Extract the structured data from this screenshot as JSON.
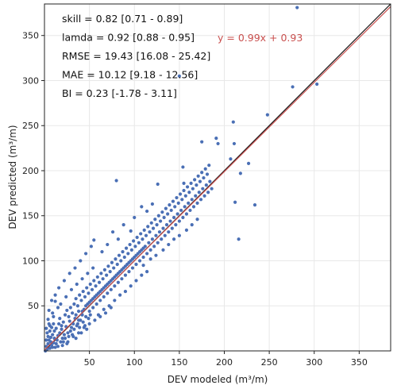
{
  "chart_data": {
    "type": "scatter",
    "xlabel": "DEV modeled (m³/m)",
    "ylabel": "DEV predicted (m³/m)",
    "xlim": [
      0,
      385
    ],
    "ylim": [
      0,
      385
    ],
    "xticks": [
      50,
      100,
      150,
      200,
      250,
      300,
      350
    ],
    "yticks": [
      50,
      100,
      150,
      200,
      250,
      300,
      350
    ],
    "grid": true,
    "colors": {
      "points": "#4a6fb5",
      "identity_line": "#111111",
      "fit_line": "#c9504f",
      "fit_text": "#c9504f",
      "grid": "#e8e8e8"
    },
    "stats": [
      "skill = 0.82 [0.71 - 0.89]",
      "lamda = 0.92 [0.88 - 0.95]",
      "RMSE = 19.43 [16.08 - 25.42]",
      "MAE = 10.12 [9.18 - 12.56]",
      "BI  = 0.23 [-1.78 - 3.11]"
    ],
    "fit": {
      "label": "y = 0.99x + 0.93",
      "slope": 0.99,
      "intercept": 0.93
    },
    "points": [
      [
        1,
        0
      ],
      [
        3,
        2
      ],
      [
        2,
        5
      ],
      [
        4,
        8
      ],
      [
        6,
        3
      ],
      [
        8,
        6
      ],
      [
        5,
        12
      ],
      [
        10,
        9
      ],
      [
        7,
        15
      ],
      [
        12,
        4
      ],
      [
        3,
        20
      ],
      [
        9,
        18
      ],
      [
        14,
        12
      ],
      [
        11,
        22
      ],
      [
        6,
        28
      ],
      [
        15,
        17
      ],
      [
        13,
        25
      ],
      [
        18,
        10
      ],
      [
        16,
        30
      ],
      [
        20,
        14
      ],
      [
        4,
        35
      ],
      [
        19,
        24
      ],
      [
        22,
        18
      ],
      [
        17,
        36
      ],
      [
        24,
        27
      ],
      [
        21,
        32
      ],
      [
        9,
        42
      ],
      [
        26,
        20
      ],
      [
        23,
        40
      ],
      [
        28,
        33
      ],
      [
        25,
        45
      ],
      [
        30,
        26
      ],
      [
        27,
        38
      ],
      [
        12,
        55
      ],
      [
        32,
        30
      ],
      [
        29,
        48
      ],
      [
        34,
        36
      ],
      [
        31,
        42
      ],
      [
        36,
        28
      ],
      [
        33,
        52
      ],
      [
        38,
        44
      ],
      [
        35,
        58
      ],
      [
        40,
        34
      ],
      [
        37,
        50
      ],
      [
        42,
        40
      ],
      [
        39,
        62
      ],
      [
        44,
        46
      ],
      [
        41,
        56
      ],
      [
        46,
        38
      ],
      [
        43,
        66
      ],
      [
        48,
        52
      ],
      [
        45,
        60
      ],
      [
        50,
        44
      ],
      [
        47,
        70
      ],
      [
        52,
        56
      ],
      [
        49,
        64
      ],
      [
        54,
        48
      ],
      [
        51,
        74
      ],
      [
        56,
        60
      ],
      [
        53,
        68
      ],
      [
        58,
        52
      ],
      [
        55,
        78
      ],
      [
        60,
        64
      ],
      [
        57,
        72
      ],
      [
        62,
        56
      ],
      [
        59,
        82
      ],
      [
        64,
        68
      ],
      [
        61,
        76
      ],
      [
        66,
        60
      ],
      [
        63,
        86
      ],
      [
        68,
        72
      ],
      [
        65,
        80
      ],
      [
        70,
        64
      ],
      [
        67,
        90
      ],
      [
        72,
        76
      ],
      [
        69,
        84
      ],
      [
        74,
        68
      ],
      [
        71,
        94
      ],
      [
        76,
        80
      ],
      [
        73,
        88
      ],
      [
        78,
        72
      ],
      [
        75,
        98
      ],
      [
        80,
        84
      ],
      [
        77,
        92
      ],
      [
        82,
        76
      ],
      [
        79,
        102
      ],
      [
        84,
        88
      ],
      [
        81,
        96
      ],
      [
        86,
        80
      ],
      [
        83,
        106
      ],
      [
        88,
        92
      ],
      [
        85,
        100
      ],
      [
        90,
        84
      ],
      [
        87,
        110
      ],
      [
        92,
        96
      ],
      [
        89,
        104
      ],
      [
        94,
        88
      ],
      [
        91,
        114
      ],
      [
        96,
        100
      ],
      [
        93,
        108
      ],
      [
        98,
        92
      ],
      [
        95,
        118
      ],
      [
        100,
        104
      ],
      [
        97,
        112
      ],
      [
        102,
        96
      ],
      [
        99,
        122
      ],
      [
        104,
        108
      ],
      [
        101,
        116
      ],
      [
        106,
        100
      ],
      [
        103,
        126
      ],
      [
        108,
        112
      ],
      [
        105,
        120
      ],
      [
        110,
        104
      ],
      [
        107,
        130
      ],
      [
        112,
        116
      ],
      [
        109,
        124
      ],
      [
        114,
        108
      ],
      [
        111,
        134
      ],
      [
        116,
        120
      ],
      [
        113,
        128
      ],
      [
        118,
        112
      ],
      [
        115,
        138
      ],
      [
        120,
        124
      ],
      [
        117,
        132
      ],
      [
        122,
        116
      ],
      [
        119,
        142
      ],
      [
        124,
        128
      ],
      [
        121,
        136
      ],
      [
        126,
        120
      ],
      [
        123,
        146
      ],
      [
        128,
        132
      ],
      [
        125,
        140
      ],
      [
        130,
        124
      ],
      [
        127,
        150
      ],
      [
        132,
        136
      ],
      [
        129,
        144
      ],
      [
        134,
        128
      ],
      [
        131,
        154
      ],
      [
        136,
        140
      ],
      [
        133,
        148
      ],
      [
        138,
        132
      ],
      [
        135,
        158
      ],
      [
        140,
        144
      ],
      [
        137,
        152
      ],
      [
        142,
        136
      ],
      [
        139,
        162
      ],
      [
        144,
        148
      ],
      [
        141,
        156
      ],
      [
        146,
        140
      ],
      [
        143,
        166
      ],
      [
        148,
        152
      ],
      [
        145,
        160
      ],
      [
        150,
        144
      ],
      [
        147,
        170
      ],
      [
        152,
        156
      ],
      [
        149,
        164
      ],
      [
        154,
        148
      ],
      [
        151,
        174
      ],
      [
        156,
        160
      ],
      [
        153,
        168
      ],
      [
        158,
        152
      ],
      [
        155,
        178
      ],
      [
        160,
        164
      ],
      [
        157,
        172
      ],
      [
        162,
        156
      ],
      [
        159,
        182
      ],
      [
        164,
        168
      ],
      [
        161,
        176
      ],
      [
        166,
        160
      ],
      [
        163,
        186
      ],
      [
        168,
        172
      ],
      [
        165,
        180
      ],
      [
        170,
        164
      ],
      [
        167,
        190
      ],
      [
        172,
        176
      ],
      [
        169,
        184
      ],
      [
        174,
        168
      ],
      [
        171,
        194
      ],
      [
        176,
        180
      ],
      [
        173,
        188
      ],
      [
        178,
        172
      ],
      [
        175,
        198
      ],
      [
        180,
        184
      ],
      [
        177,
        192
      ],
      [
        182,
        176
      ],
      [
        179,
        202
      ],
      [
        184,
        188
      ],
      [
        181,
        196
      ],
      [
        186,
        180
      ],
      [
        183,
        206
      ],
      [
        150,
        305
      ],
      [
        276,
        293
      ],
      [
        303,
        296
      ],
      [
        281,
        381
      ],
      [
        248,
        262
      ],
      [
        210,
        254
      ],
      [
        191,
        236
      ],
      [
        193,
        230
      ],
      [
        211,
        230
      ],
      [
        175,
        232
      ],
      [
        154,
        204
      ],
      [
        155,
        186
      ],
      [
        126,
        185
      ],
      [
        80,
        189
      ],
      [
        212,
        165
      ],
      [
        216,
        124
      ],
      [
        227,
        208
      ],
      [
        207,
        213
      ],
      [
        218,
        197
      ],
      [
        234,
        162
      ],
      [
        120,
        163
      ],
      [
        114,
        155
      ],
      [
        108,
        160
      ],
      [
        100,
        148
      ],
      [
        96,
        133
      ],
      [
        88,
        140
      ],
      [
        82,
        124
      ],
      [
        76,
        132
      ],
      [
        70,
        118
      ],
      [
        64,
        110
      ],
      [
        55,
        123
      ],
      [
        52,
        116
      ],
      [
        46,
        108
      ],
      [
        40,
        100
      ],
      [
        34,
        92
      ],
      [
        28,
        86
      ],
      [
        22,
        78
      ],
      [
        16,
        70
      ],
      [
        12,
        62
      ],
      [
        8,
        56
      ],
      [
        110,
        95
      ],
      [
        118,
        102
      ],
      [
        124,
        106
      ],
      [
        132,
        112
      ],
      [
        138,
        118
      ],
      [
        144,
        124
      ],
      [
        150,
        128
      ],
      [
        158,
        134
      ],
      [
        164,
        140
      ],
      [
        170,
        146
      ],
      [
        60,
        40
      ],
      [
        66,
        46
      ],
      [
        72,
        50
      ],
      [
        78,
        56
      ],
      [
        84,
        62
      ],
      [
        90,
        66
      ],
      [
        96,
        72
      ],
      [
        102,
        78
      ],
      [
        108,
        84
      ],
      [
        114,
        88
      ],
      [
        20,
        6
      ],
      [
        26,
        10
      ],
      [
        32,
        16
      ],
      [
        38,
        20
      ],
      [
        44,
        26
      ],
      [
        50,
        30
      ],
      [
        56,
        34
      ],
      [
        62,
        38
      ],
      [
        68,
        42
      ],
      [
        74,
        48
      ],
      [
        5,
        45
      ],
      [
        10,
        38
      ],
      [
        15,
        48
      ],
      [
        18,
        52
      ],
      [
        24,
        60
      ],
      [
        30,
        68
      ],
      [
        36,
        74
      ],
      [
        42,
        80
      ],
      [
        48,
        86
      ],
      [
        54,
        92
      ],
      [
        2,
        12
      ],
      [
        4,
        16
      ],
      [
        6,
        22
      ],
      [
        8,
        26
      ],
      [
        10,
        30
      ],
      [
        2,
        25
      ],
      [
        5,
        30
      ],
      [
        7,
        10
      ],
      [
        9,
        4
      ],
      [
        11,
        14
      ],
      [
        13,
        8
      ],
      [
        15,
        5
      ],
      [
        17,
        20
      ],
      [
        19,
        28
      ],
      [
        21,
        10
      ],
      [
        23,
        14
      ],
      [
        25,
        8
      ],
      [
        27,
        16
      ],
      [
        29,
        22
      ],
      [
        31,
        18
      ],
      [
        33,
        24
      ],
      [
        35,
        14
      ],
      [
        37,
        30
      ],
      [
        39,
        26
      ],
      [
        41,
        20
      ],
      [
        43,
        32
      ],
      [
        45,
        28
      ],
      [
        47,
        24
      ],
      [
        49,
        36
      ],
      [
        51,
        40
      ],
      [
        35,
        40
      ],
      [
        38,
        34
      ],
      [
        42,
        44
      ],
      [
        46,
        50
      ],
      [
        50,
        54
      ],
      [
        54,
        58
      ],
      [
        58,
        62
      ],
      [
        62,
        66
      ],
      [
        66,
        70
      ],
      [
        70,
        74
      ],
      [
        74,
        78
      ],
      [
        78,
        82
      ],
      [
        82,
        86
      ],
      [
        86,
        90
      ],
      [
        90,
        94
      ],
      [
        94,
        98
      ],
      [
        98,
        102
      ],
      [
        102,
        106
      ],
      [
        106,
        110
      ],
      [
        110,
        114
      ]
    ]
  }
}
